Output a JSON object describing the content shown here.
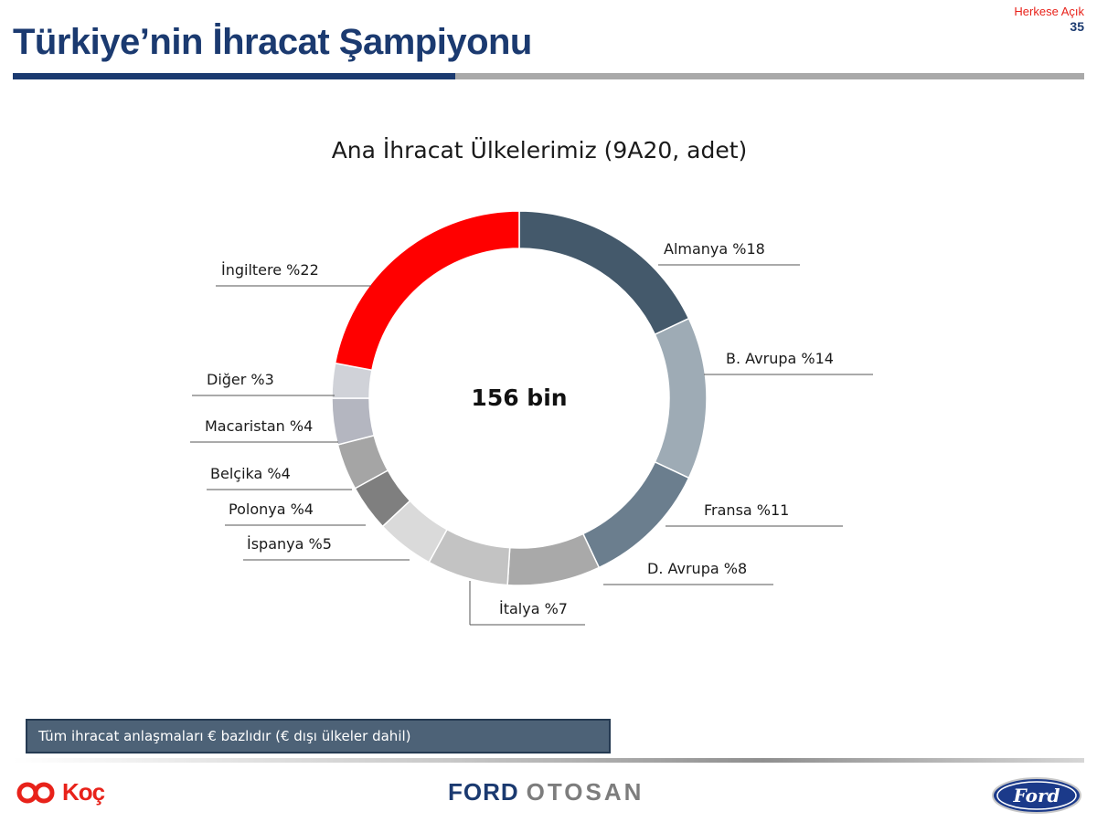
{
  "header": {
    "title": "Türkiye’nin İhracat Şampiyonu",
    "classification": "Herkese Açık",
    "page_number": "35",
    "classification_color": "#e8221a",
    "title_color": "#1b3a70"
  },
  "chart_data": {
    "type": "pie",
    "style": "donut",
    "title": "Ana İhracat Ülkelerimiz (9A20, adet)",
    "center_label": "156 bin",
    "unit": "%",
    "slices": [
      {
        "label": "Almanya %18",
        "value": 18,
        "color": "#44596b"
      },
      {
        "label": "B. Avrupa %14",
        "value": 14,
        "color": "#9eabb5"
      },
      {
        "label": "Fransa %11",
        "value": 11,
        "color": "#6b7e8e"
      },
      {
        "label": "D. Avrupa %8",
        "value": 8,
        "color": "#a9a9a9"
      },
      {
        "label": "İtalya %7",
        "value": 7,
        "color": "#c3c3c3"
      },
      {
        "label": "İspanya %5",
        "value": 5,
        "color": "#dadada"
      },
      {
        "label": "Polonya %4",
        "value": 4,
        "color": "#7f7f7f"
      },
      {
        "label": "Belçika %4",
        "value": 4,
        "color": "#a5a5a5"
      },
      {
        "label": "Macaristan %4",
        "value": 4,
        "color": "#b4b6c0"
      },
      {
        "label": "Diğer %3",
        "value": 3,
        "color": "#d0d2d8"
      },
      {
        "label": "İngiltere %22",
        "value": 22,
        "color": "#ff0000"
      }
    ]
  },
  "note": {
    "text": "Tüm ihracat anlaşmaları € bazlıdır (€ dışı ülkeler dahil)"
  },
  "footer": {
    "koc_logo_text": "Koç",
    "ford_otosan_word1": "FORD",
    "ford_otosan_word2": "OTOSAN",
    "ford_oval_text": "Ford"
  }
}
